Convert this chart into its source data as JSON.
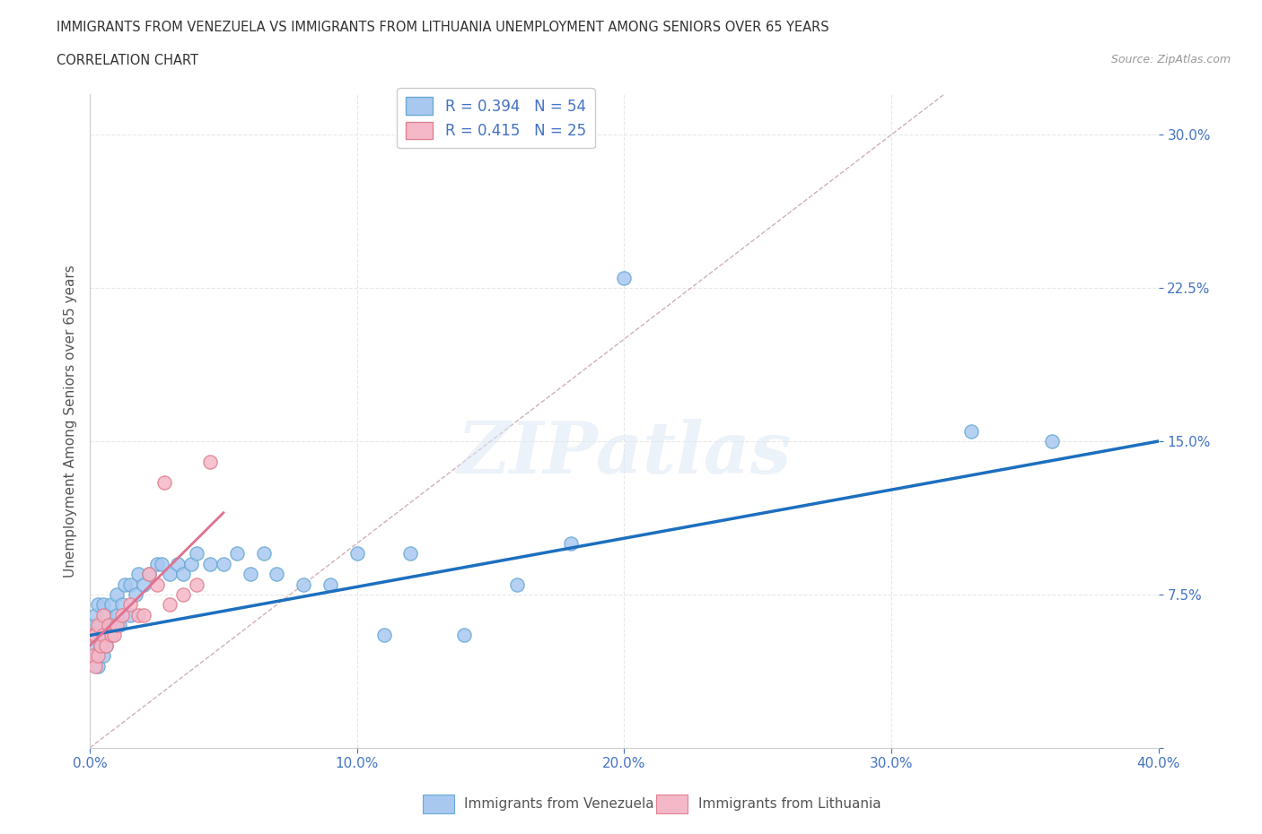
{
  "title_line1": "IMMIGRANTS FROM VENEZUELA VS IMMIGRANTS FROM LITHUANIA UNEMPLOYMENT AMONG SENIORS OVER 65 YEARS",
  "title_line2": "CORRELATION CHART",
  "source": "Source: ZipAtlas.com",
  "ylabel": "Unemployment Among Seniors over 65 years",
  "xlim": [
    0.0,
    0.4
  ],
  "ylim": [
    0.0,
    0.32
  ],
  "xticks": [
    0.0,
    0.1,
    0.2,
    0.3,
    0.4
  ],
  "xticklabels": [
    "0.0%",
    "10.0%",
    "20.0%",
    "30.0%",
    "40.0%"
  ],
  "yticks": [
    0.0,
    0.075,
    0.15,
    0.225,
    0.3
  ],
  "yticklabels": [
    "",
    "7.5%",
    "15.0%",
    "22.5%",
    "30.0%"
  ],
  "background_color": "#ffffff",
  "venezuela_color": "#a8c8f0",
  "venezuela_edge": "#6aaad4",
  "lithuania_color": "#f5b8c8",
  "lithuania_edge": "#e08090",
  "venezuela_R": 0.394,
  "venezuela_N": 54,
  "lithuania_R": 0.415,
  "lithuania_N": 25,
  "venezuela_trendline_color": "#1c6fbe",
  "lithuania_trendline_color": "#e07090",
  "diagonal_color": "#d0b0b8",
  "grid_color": "#e8e8e8",
  "venezuela_x": [
    0.001,
    0.001,
    0.002,
    0.002,
    0.002,
    0.003,
    0.003,
    0.003,
    0.004,
    0.004,
    0.005,
    0.005,
    0.005,
    0.006,
    0.006,
    0.007,
    0.008,
    0.008,
    0.009,
    0.01,
    0.01,
    0.011,
    0.012,
    0.013,
    0.015,
    0.015,
    0.017,
    0.018,
    0.02,
    0.022,
    0.025,
    0.027,
    0.03,
    0.033,
    0.035,
    0.038,
    0.04,
    0.045,
    0.05,
    0.055,
    0.06,
    0.065,
    0.07,
    0.08,
    0.09,
    0.1,
    0.11,
    0.12,
    0.14,
    0.16,
    0.18,
    0.2,
    0.33,
    0.36
  ],
  "venezuela_y": [
    0.05,
    0.06,
    0.045,
    0.055,
    0.065,
    0.04,
    0.055,
    0.07,
    0.05,
    0.06,
    0.045,
    0.055,
    0.07,
    0.05,
    0.065,
    0.06,
    0.055,
    0.07,
    0.06,
    0.065,
    0.075,
    0.06,
    0.07,
    0.08,
    0.065,
    0.08,
    0.075,
    0.085,
    0.08,
    0.085,
    0.09,
    0.09,
    0.085,
    0.09,
    0.085,
    0.09,
    0.095,
    0.09,
    0.09,
    0.095,
    0.085,
    0.095,
    0.085,
    0.08,
    0.08,
    0.095,
    0.055,
    0.095,
    0.055,
    0.08,
    0.1,
    0.23,
    0.155,
    0.15
  ],
  "lithuania_x": [
    0.001,
    0.001,
    0.002,
    0.002,
    0.003,
    0.003,
    0.004,
    0.005,
    0.005,
    0.006,
    0.007,
    0.008,
    0.009,
    0.01,
    0.012,
    0.015,
    0.018,
    0.02,
    0.022,
    0.025,
    0.028,
    0.03,
    0.035,
    0.04,
    0.045
  ],
  "lithuania_y": [
    0.045,
    0.055,
    0.04,
    0.055,
    0.045,
    0.06,
    0.05,
    0.055,
    0.065,
    0.05,
    0.06,
    0.055,
    0.055,
    0.06,
    0.065,
    0.07,
    0.065,
    0.065,
    0.085,
    0.08,
    0.13,
    0.07,
    0.075,
    0.08,
    0.14
  ],
  "trendline_x_start": 0.0,
  "venezuela_trendline_x_end": 0.4,
  "venezuela_trendline_y_start": 0.055,
  "venezuela_trendline_y_end": 0.15,
  "lithuania_trendline_x_end": 0.05,
  "lithuania_trendline_y_start": 0.05,
  "lithuania_trendline_y_end": 0.115
}
